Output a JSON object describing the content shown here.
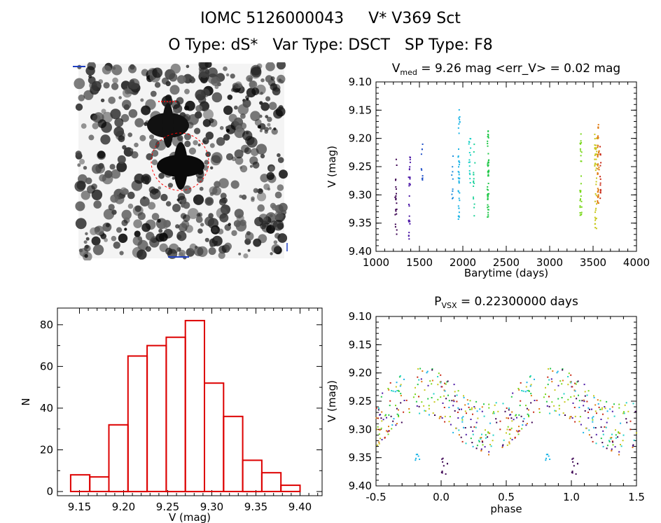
{
  "header": {
    "line1_part1": "IOMC 5126000043",
    "line1_part2": "V* V369 Sct",
    "line2_part1": "O Type: dS*",
    "line2_part2": "Var Type: DSCT",
    "line2_part3": "SP Type: F8"
  },
  "thumbnail": {
    "description_icon": "star-field-image",
    "marker_color": "#ff0000"
  },
  "chart_data": [
    {
      "id": "lightcurve",
      "type": "scatter",
      "title_main": "V",
      "title_sub": "med",
      "title_rest": " = 9.26 mag <err_V> = 0.02 mag",
      "xlabel": "Barytime (days)",
      "ylabel": "V (mag)",
      "xlim": [
        1000,
        4000
      ],
      "ylim": [
        9.4,
        9.1
      ],
      "x_ticks": [
        "1000",
        "1500",
        "2000",
        "2500",
        "3000",
        "3500",
        "4000"
      ],
      "y_ticks": [
        "9.10",
        "9.15",
        "9.20",
        "9.25",
        "9.30",
        "9.35",
        "9.40"
      ],
      "series": [
        {
          "x_center": 1230,
          "spread": 20,
          "ymin": 9.235,
          "ymax": 9.375,
          "color": "#3a0050",
          "n": 22
        },
        {
          "x_center": 1385,
          "spread": 20,
          "ymin": 9.225,
          "ymax": 9.385,
          "color": "#4b17a6",
          "n": 28
        },
        {
          "x_center": 1530,
          "spread": 15,
          "ymin": 9.21,
          "ymax": 9.28,
          "color": "#2050c8",
          "n": 10
        },
        {
          "x_center": 1880,
          "spread": 15,
          "ymin": 9.23,
          "ymax": 9.31,
          "color": "#1e8cdc",
          "n": 10
        },
        {
          "x_center": 1955,
          "spread": 20,
          "ymin": 9.14,
          "ymax": 9.345,
          "color": "#1cb4e6",
          "n": 40
        },
        {
          "x_center": 2080,
          "spread": 20,
          "ymin": 9.2,
          "ymax": 9.3,
          "color": "#20d2c8",
          "n": 18
        },
        {
          "x_center": 2130,
          "spread": 20,
          "ymin": 9.21,
          "ymax": 9.34,
          "color": "#20d29a",
          "n": 16
        },
        {
          "x_center": 2290,
          "spread": 20,
          "ymin": 9.185,
          "ymax": 9.34,
          "color": "#22c84a",
          "n": 50
        },
        {
          "x_center": 3360,
          "spread": 20,
          "ymin": 9.19,
          "ymax": 9.345,
          "color": "#7ad81c",
          "n": 30
        },
        {
          "x_center": 3530,
          "spread": 25,
          "ymin": 9.19,
          "ymax": 9.36,
          "color": "#c8c81c",
          "n": 40
        },
        {
          "x_center": 3560,
          "spread": 20,
          "ymin": 9.175,
          "ymax": 9.32,
          "color": "#e07a10",
          "n": 40
        },
        {
          "x_center": 3585,
          "spread": 10,
          "ymin": 9.2,
          "ymax": 9.31,
          "color": "#c82814",
          "n": 15
        }
      ]
    },
    {
      "id": "histogram",
      "type": "bar",
      "xlabel": "V (mag)",
      "ylabel": "N",
      "xlim": [
        9.125,
        9.425
      ],
      "ylim": [
        -2,
        88
      ],
      "x_ticks": [
        "9.15",
        "9.20",
        "9.25",
        "9.30",
        "9.35",
        "9.40"
      ],
      "y_ticks": [
        "0",
        "20",
        "40",
        "60",
        "80"
      ],
      "bar_color": "#dd0000",
      "bin_left_edges": [
        9.14,
        9.1617,
        9.1833,
        9.205,
        9.2267,
        9.2483,
        9.27,
        9.2917,
        9.3133,
        9.335,
        9.3567,
        9.3783
      ],
      "bin_width": 0.02167,
      "values": [
        8,
        7,
        32,
        65,
        70,
        74,
        82,
        52,
        36,
        15,
        9,
        3
      ]
    },
    {
      "id": "phased",
      "type": "scatter",
      "title_main": "P",
      "title_sub": "VSX",
      "title_rest": " = 0.22300000 days",
      "xlabel": "phase",
      "ylabel": "V (mag)",
      "xlim": [
        -0.5,
        1.5
      ],
      "ylim": [
        9.4,
        9.1
      ],
      "x_ticks": [
        "-0.5",
        "0.0",
        "0.5",
        "1.0",
        "1.5"
      ],
      "y_ticks": [
        "9.10",
        "9.15",
        "9.20",
        "9.25",
        "9.30",
        "9.35",
        "9.40"
      ],
      "period": 0.223,
      "colors": [
        "#3a0050",
        "#4b17a6",
        "#1cb4e6",
        "#20d2c8",
        "#22c84a",
        "#7ad81c",
        "#c8c81c",
        "#e07a10",
        "#c82814"
      ]
    }
  ]
}
